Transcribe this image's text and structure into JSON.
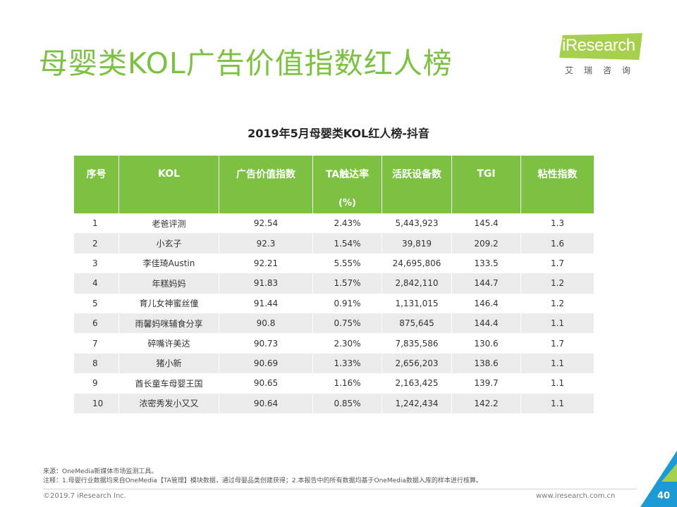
{
  "slide": {
    "title": "母婴类KOL广告价值指数红人榜",
    "logo_word": "iResearch",
    "logo_cn": "艾瑞咨询"
  },
  "table": {
    "title": "2019年5月母婴类KOL红人榜-抖音",
    "headers": [
      "序号",
      "KOL",
      "广告价值指数",
      "TA触达率",
      "活跃设备数",
      "TGI",
      "粘性指数"
    ],
    "subheader_unit": "(%)",
    "rows": [
      {
        "rank": "1",
        "kol": "老爸评测",
        "ad_index": "92.54",
        "ta_reach": "2.43%",
        "devices": "5,443,923",
        "tgi": "145.4",
        "stickiness": "1.3"
      },
      {
        "rank": "2",
        "kol": "小玄子",
        "ad_index": "92.3",
        "ta_reach": "1.54%",
        "devices": "39,819",
        "tgi": "209.2",
        "stickiness": "1.6"
      },
      {
        "rank": "3",
        "kol": "李佳琦Austin",
        "ad_index": "92.21",
        "ta_reach": "5.55%",
        "devices": "24,695,806",
        "tgi": "133.5",
        "stickiness": "1.7"
      },
      {
        "rank": "4",
        "kol": "年糕妈妈",
        "ad_index": "91.83",
        "ta_reach": "1.57%",
        "devices": "2,842,110",
        "tgi": "144.7",
        "stickiness": "1.2"
      },
      {
        "rank": "5",
        "kol": "育儿女神蜜丝僮",
        "ad_index": "91.44",
        "ta_reach": "0.91%",
        "devices": "1,131,015",
        "tgi": "146.4",
        "stickiness": "1.2"
      },
      {
        "rank": "6",
        "kol": "雨馨妈咪辅食分享",
        "ad_index": "90.8",
        "ta_reach": "0.75%",
        "devices": "875,645",
        "tgi": "144.4",
        "stickiness": "1.1"
      },
      {
        "rank": "7",
        "kol": "碎嘴许美达",
        "ad_index": "90.73",
        "ta_reach": "2.30%",
        "devices": "7,835,586",
        "tgi": "130.6",
        "stickiness": "1.7"
      },
      {
        "rank": "8",
        "kol": "猪小新",
        "ad_index": "90.69",
        "ta_reach": "1.33%",
        "devices": "2,656,203",
        "tgi": "138.6",
        "stickiness": "1.1"
      },
      {
        "rank": "9",
        "kol": "酋长童车母婴王国",
        "ad_index": "90.65",
        "ta_reach": "1.16%",
        "devices": "2,163,425",
        "tgi": "139.7",
        "stickiness": "1.1"
      },
      {
        "rank": "10",
        "kol": "浓密秀发小又又",
        "ad_index": "90.64",
        "ta_reach": "0.85%",
        "devices": "1,242,434",
        "tgi": "142.2",
        "stickiness": "1.1"
      }
    ]
  },
  "notes": {
    "source": "来源：OneMedia新媒体市场监测工具。",
    "note": "注释：1.母婴行业数据均来自OneMedia【TA管理】模块数据，通过母婴品类创建获得；2.本报告中的所有数据均基于OneMedia数据入库的样本进行核算。"
  },
  "footer": {
    "copyright": "©2019.7 iResearch Inc.",
    "website": "www.iresearch.com.cn",
    "page_number": "40"
  },
  "colors": {
    "accent_green": "#7cc142",
    "logo_green": "#a5cf4c",
    "corner_blue": "#1b9ad6",
    "row_alt": "#ebebeb"
  }
}
